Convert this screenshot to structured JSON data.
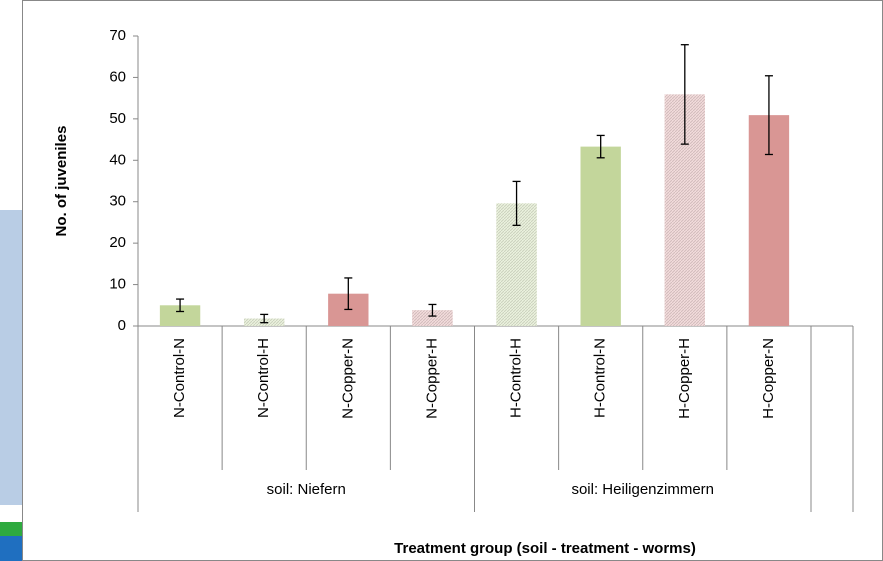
{
  "chart_data": {
    "type": "bar",
    "y_label": "No. of juveniles",
    "x_label": "Treatment group (soil - treatment - worms)",
    "categories": [
      "N-Control-N",
      "N-Control-H",
      "N-Copper-N",
      "N-Copper-H",
      "H-Control-H",
      "H-Control-N",
      "H-Copper-H",
      "H-Copper-N"
    ],
    "values": [
      5,
      1.8,
      7.8,
      3.8,
      29.6,
      43.3,
      55.9,
      50.9
    ],
    "errors": [
      1.5,
      1,
      3.8,
      1.4,
      5.3,
      2.7,
      12,
      9.5
    ],
    "colors": [
      "#c3d69b",
      "#d7e4bd",
      "#d99694",
      "#e6b9b8",
      "#d7e4bd",
      "#c3d69b",
      "#e6b9b8",
      "#d99694"
    ],
    "patterns": [
      "solid",
      "hatched",
      "solid",
      "hatched",
      "hatched",
      "solid",
      "hatched",
      "solid"
    ],
    "groups": [
      {
        "label": "soil: Niefern",
        "span": 4
      },
      {
        "label": "soil: Heiligenzimmern",
        "span": 4
      }
    ],
    "ylim": [
      0,
      70
    ],
    "yticks": [
      0,
      10,
      20,
      30,
      40,
      50,
      60,
      70
    ],
    "grid": false
  }
}
